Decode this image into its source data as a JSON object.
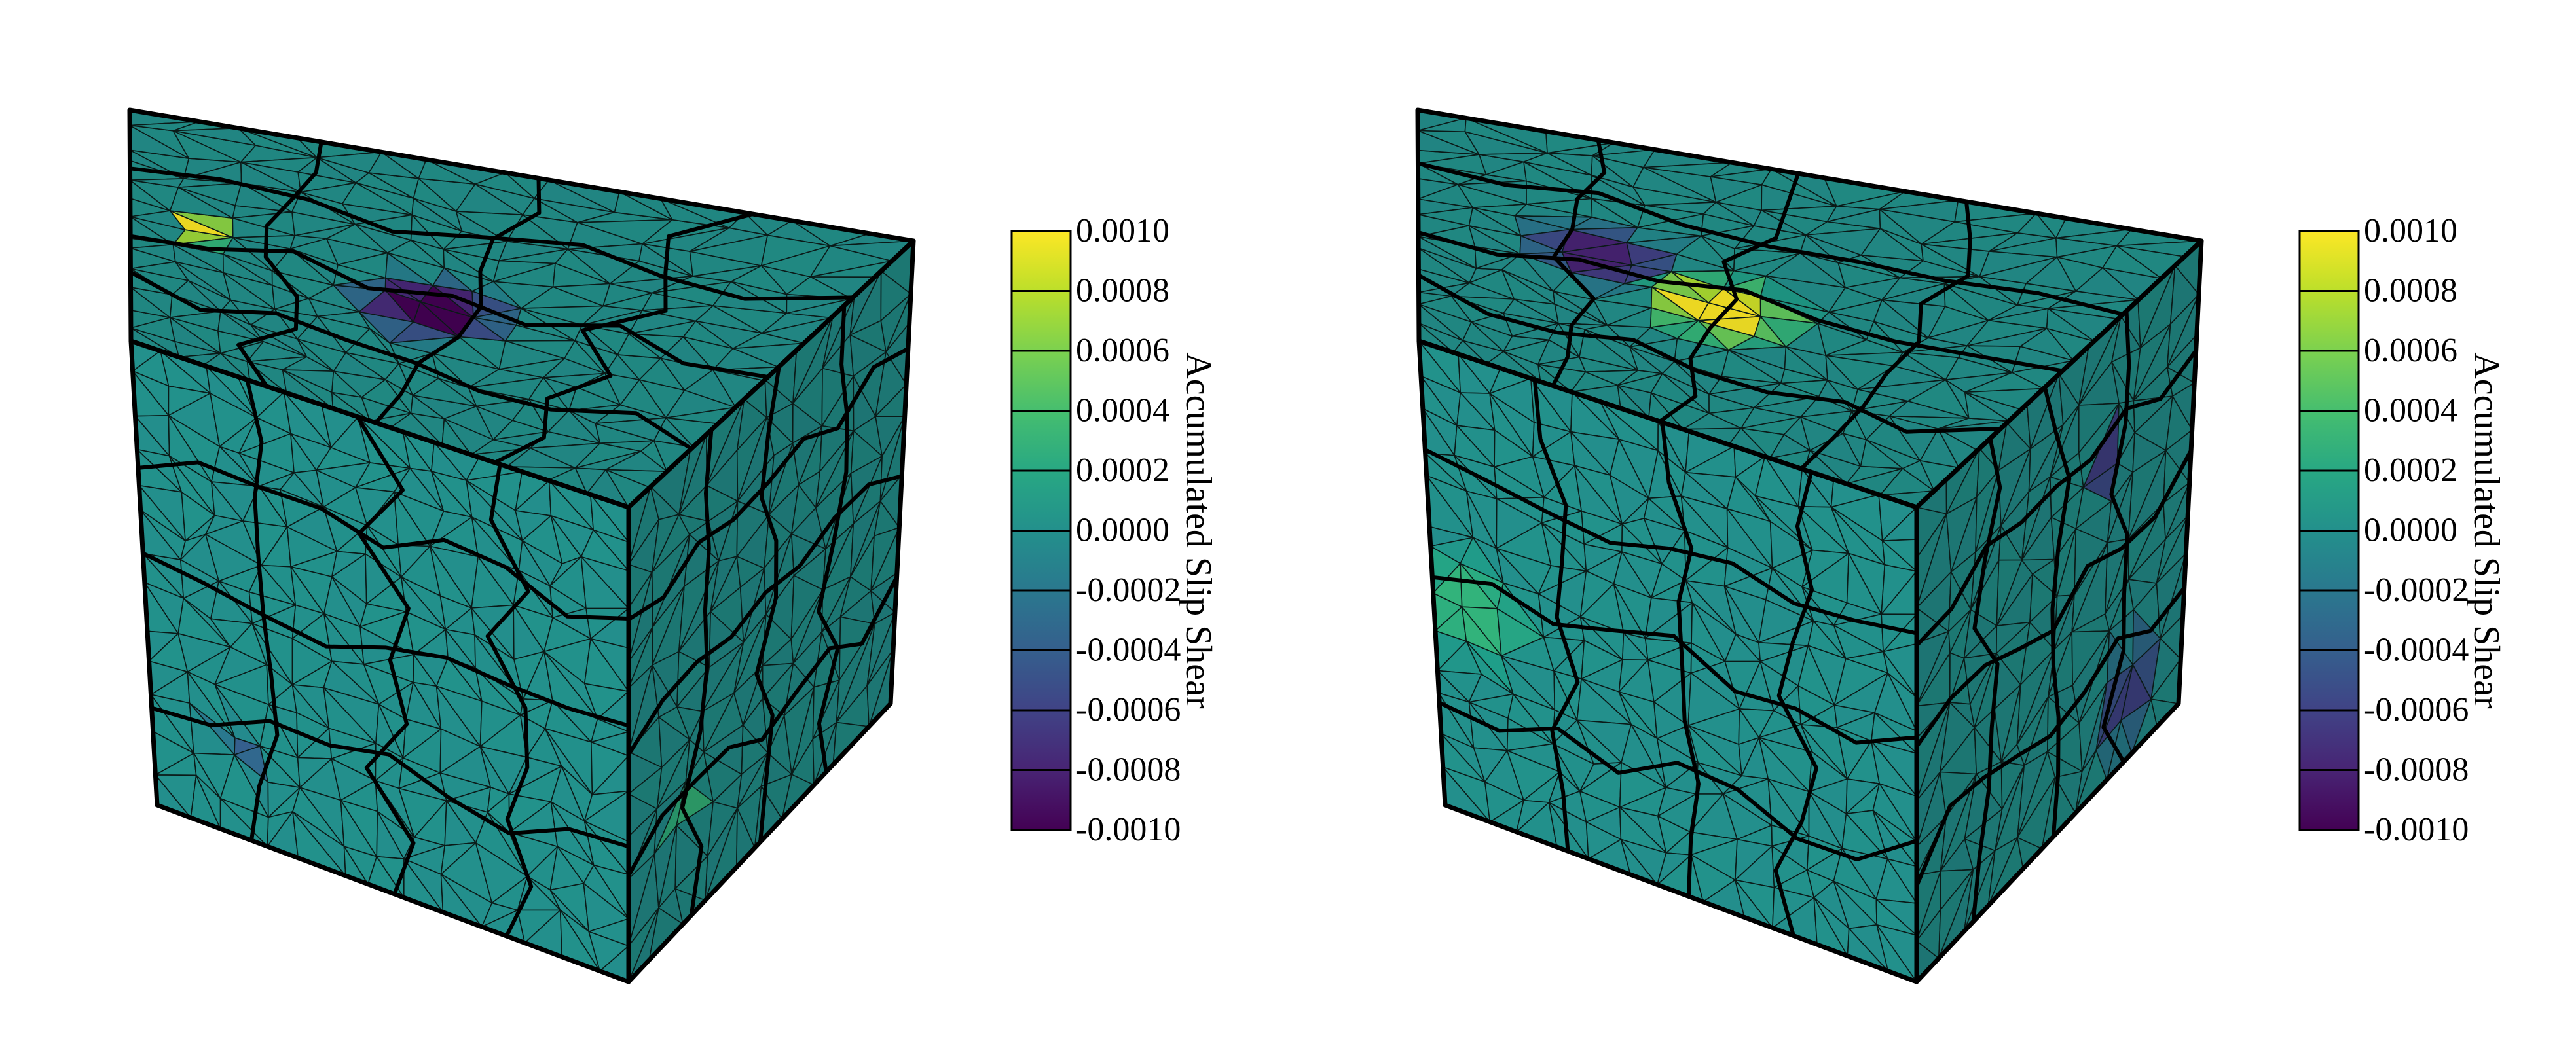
{
  "figure": {
    "panels": [
      {
        "id": "left",
        "colorbar": {
          "label": "Accumulated Slip Shear",
          "ticks": [
            "0.0010",
            "0.0008",
            "0.0006",
            "0.0004",
            "0.0002",
            "0.0000",
            "-0.0002",
            "-0.0004",
            "-0.0006",
            "-0.0008",
            "-0.0010"
          ],
          "min": -0.001,
          "max": 0.001,
          "colormap": "viridis"
        },
        "highlights": [
          {
            "face": "top",
            "value": 0.001,
            "shape": "small-sliver"
          },
          {
            "face": "top",
            "value": -0.001,
            "shape": "grain-cluster"
          },
          {
            "face": "front",
            "value": -0.0004,
            "shape": "small-triangle"
          },
          {
            "face": "right",
            "value": 0.0005,
            "shape": "sliver"
          }
        ]
      },
      {
        "id": "right",
        "colorbar": {
          "label": "Accumulated Slip Shear",
          "ticks": [
            "0.0010",
            "0.0008",
            "0.0006",
            "0.0004",
            "0.0002",
            "0.0000",
            "-0.0002",
            "-0.0004",
            "-0.0006",
            "-0.0008",
            "-0.0010"
          ],
          "min": -0.001,
          "max": 0.001,
          "colormap": "viridis"
        },
        "highlights": [
          {
            "face": "top",
            "value": -0.0008,
            "shape": "small-cluster"
          },
          {
            "face": "top",
            "value": 0.001,
            "shape": "grain-cluster"
          },
          {
            "face": "right",
            "value": -0.0007,
            "shape": "sliver"
          },
          {
            "face": "right",
            "value": -0.0006,
            "shape": "corner-cluster"
          },
          {
            "face": "front",
            "value": 0.0003,
            "shape": "grain-cluster"
          }
        ]
      }
    ],
    "colors": {
      "base_front": "#3aa090",
      "base_top": "#3a8a80",
      "base_right": "#337a70",
      "mesh_line": "#0b1a18",
      "grain_line": "#000000"
    }
  }
}
